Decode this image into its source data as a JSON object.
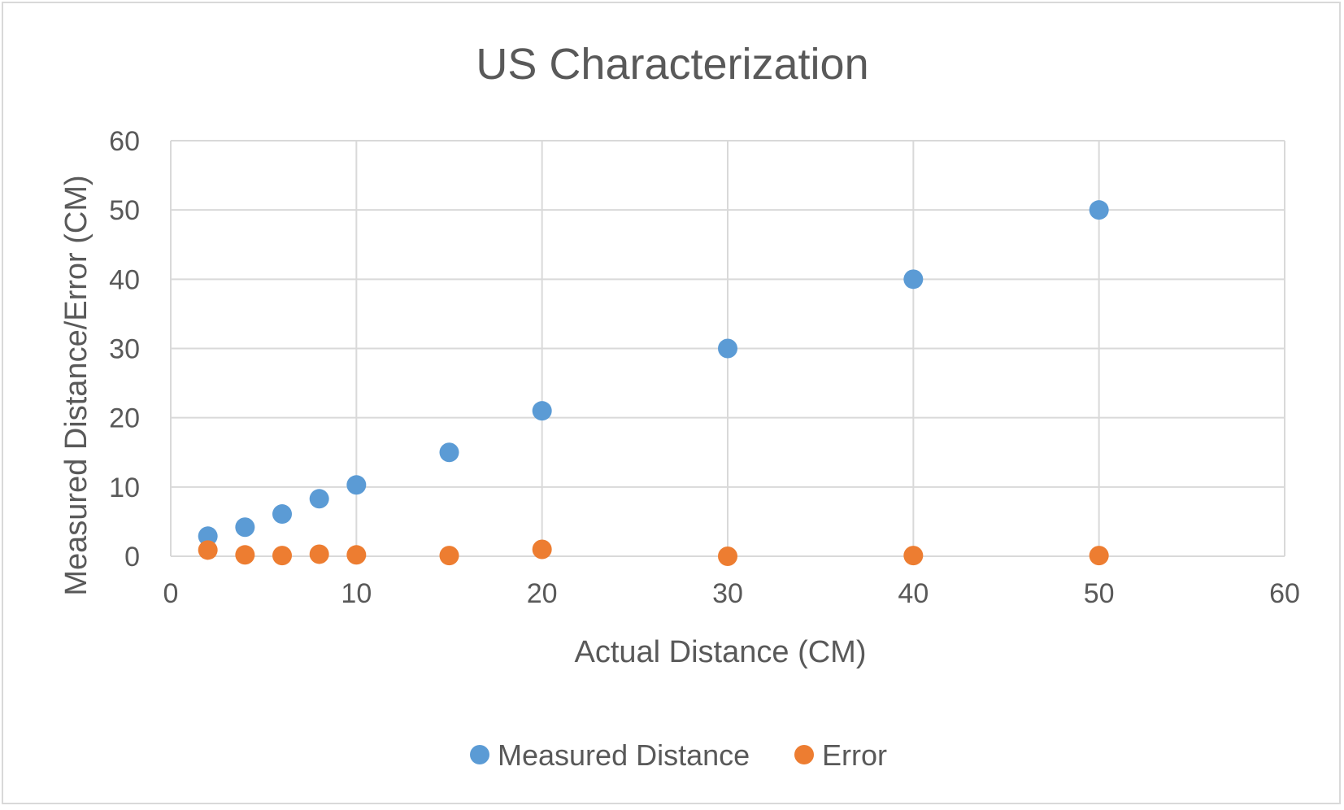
{
  "chart_data": {
    "type": "scatter",
    "title": "US Characterization",
    "xlabel": "Actual Distance (CM)",
    "ylabel": "Measured Distance/Error (CM)",
    "xlim": [
      0,
      60
    ],
    "ylim": [
      0,
      60
    ],
    "x_ticks": [
      "0",
      "10",
      "20",
      "30",
      "40",
      "50",
      "60"
    ],
    "y_ticks": [
      "0",
      "10",
      "20",
      "30",
      "40",
      "50",
      "60"
    ],
    "grid": true,
    "legend_position": "bottom",
    "series": [
      {
        "name": "Measured Distance",
        "color": "#5b9bd5",
        "points": [
          {
            "x": 2,
            "y": 2.9
          },
          {
            "x": 4,
            "y": 4.2
          },
          {
            "x": 6,
            "y": 6.1
          },
          {
            "x": 8,
            "y": 8.3
          },
          {
            "x": 10,
            "y": 10.3
          },
          {
            "x": 15,
            "y": 15.0
          },
          {
            "x": 20,
            "y": 21.0
          },
          {
            "x": 30,
            "y": 30.0
          },
          {
            "x": 40,
            "y": 40.0
          },
          {
            "x": 50,
            "y": 50.0
          }
        ]
      },
      {
        "name": "Error",
        "color": "#ed7d31",
        "points": [
          {
            "x": 2,
            "y": 0.9
          },
          {
            "x": 4,
            "y": 0.2
          },
          {
            "x": 6,
            "y": 0.1
          },
          {
            "x": 8,
            "y": 0.3
          },
          {
            "x": 10,
            "y": 0.2
          },
          {
            "x": 15,
            "y": 0.1
          },
          {
            "x": 20,
            "y": 1.0
          },
          {
            "x": 30,
            "y": 0.0
          },
          {
            "x": 40,
            "y": 0.1
          },
          {
            "x": 50,
            "y": 0.1
          }
        ]
      }
    ]
  }
}
